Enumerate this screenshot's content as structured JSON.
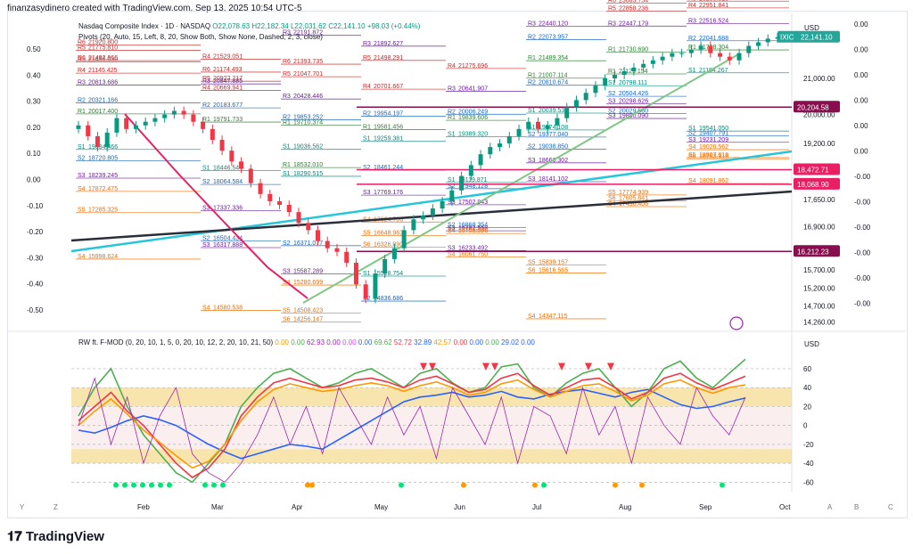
{
  "header": {
    "text": "finanzasydinero created with TradingView.com, Sep 13, 2025 10:54 UTC-5"
  },
  "legend": {
    "symbol": "Nasdaq Composite Index · 1D · NASDAQ",
    "o": "O22,078.63",
    "h": "H22,182.34",
    "l": "L22,031.62",
    "c": "C22,141.10",
    "chg": "+98.03 (+0.44%)",
    "pivots": "Pivots (20, Auto, 15, Left, 8, 20, Show Both, Show None, Dashed, 2, 3, close)"
  },
  "currency": "USD",
  "currency2": "USD",
  "ticker_tag": {
    "name": "IXIC",
    "price": "22,141.10",
    "color": "#26a69a"
  },
  "price_tags": [
    {
      "label": "20,204.58",
      "value": 20204.58,
      "color": "#880e4f"
    },
    {
      "label": "18,472.71",
      "value": 18472.71,
      "color": "#e91e63"
    },
    {
      "label": "18,068.90",
      "value": 18068.9,
      "color": "#e91e63"
    },
    {
      "label": "16,212.23",
      "value": 16212.23,
      "color": "#880e4f"
    }
  ],
  "osc_legend": {
    "name": "RW ft. F-MOD (0, 20, 10, 1, 5, 0, 20, 10, 12, 2, 20, 10, 21, 50)",
    "values": [
      {
        "v": "0.00",
        "c": "#ff9800"
      },
      {
        "v": "0.00",
        "c": "#4caf50"
      },
      {
        "v": "62.93",
        "c": "#9c27b0"
      },
      {
        "v": "0.00",
        "c": "#9c27b0"
      },
      {
        "v": "0.00",
        "c": "#e040fb"
      },
      {
        "v": "0.00",
        "c": "#2962ff"
      },
      {
        "v": "69.62",
        "c": "#4caf50"
      },
      {
        "v": "52.72",
        "c": "#f23645"
      },
      {
        "v": "32.89",
        "c": "#2962ff"
      },
      {
        "v": "42.57",
        "c": "#ff9800"
      },
      {
        "v": "0.00",
        "c": "#f23645"
      },
      {
        "v": "0.00",
        "c": "#2962ff"
      },
      {
        "v": "0.00",
        "c": "#4caf50"
      },
      {
        "v": "29.02",
        "c": "#2962ff"
      },
      {
        "v": "0.00",
        "c": "#2962ff"
      }
    ]
  },
  "left_scale": [
    "0.50",
    "0.40",
    "0.30",
    "0.20",
    "0.10",
    "0.00",
    "-0.10",
    "-0.20",
    "-0.30",
    "-0.40",
    "-0.50"
  ],
  "left_scale2": [
    "0.00",
    "0.00",
    "0.00",
    "0.00",
    "0.00",
    "-0.00",
    "-0.00",
    "-0.00"
  ],
  "right_scale2": [
    "0.00",
    "0.00",
    "0.00",
    "0.00",
    "0.00",
    "0.00",
    "-0.00",
    "-0.00",
    "-0.00",
    "-0.00",
    "-0.00",
    "-0.00"
  ],
  "chart_data": [
    {
      "type": "candlestick",
      "title": "Nasdaq Composite Index · 1D · NASDAQ",
      "x_ticks": [
        "Feb",
        "Mar",
        "Apr",
        "May",
        "Jun",
        "Jul",
        "Aug",
        "Sep",
        "Oct"
      ],
      "y_ticks": [
        21000,
        20000,
        19200,
        17650,
        16900,
        15700,
        15200,
        14700,
        14260
      ],
      "y_tick_labels": [
        "21,000.00",
        "20,000.00",
        "19,200.00",
        "17,650.00",
        "16,900.00",
        "15,700.00",
        "15,200.00",
        "14,700.00",
        "14,260.00"
      ],
      "ylim": [
        14000,
        22800
      ],
      "close": [
        19700,
        19400,
        19100,
        19500,
        19900,
        19600,
        19700,
        19800,
        19900,
        20000,
        20100,
        20000,
        19800,
        19600,
        19300,
        19000,
        18700,
        18500,
        18100,
        17800,
        17600,
        17500,
        17300,
        17000,
        16800,
        16500,
        16300,
        16200,
        15900,
        15300,
        14900,
        15600,
        16000,
        16300,
        16800,
        17100,
        17200,
        17400,
        17600,
        17900,
        18300,
        18600,
        18900,
        19100,
        19200,
        19400,
        19600,
        19800,
        19600,
        19700,
        19900,
        20200,
        20400,
        20600,
        20800,
        21000,
        21100,
        21200,
        21300,
        21400,
        21500,
        21600,
        21700,
        21700,
        21800,
        21900,
        21700,
        21600,
        21500,
        21700,
        21900,
        22000,
        22100,
        22141
      ],
      "pivot_levels": [
        {
          "label": "R6",
          "value": "21492.866"
        },
        {
          "label": "R5",
          "value": "21456.030"
        },
        {
          "label": "R4",
          "value": "21145.425"
        },
        {
          "label": "R3",
          "value": "20813.686"
        },
        {
          "label": "R2",
          "value": "20321.166"
        },
        {
          "label": "R1",
          "value": "20017.400"
        },
        {
          "label": "S1",
          "value": "19034.466"
        },
        {
          "label": "S2",
          "value": "18720.805"
        },
        {
          "label": "S3",
          "value": "18239.245"
        },
        {
          "label": "S4",
          "value": "17872.475"
        },
        {
          "label": "S5",
          "value": "17285.325"
        },
        {
          "label": "S4",
          "value": "15998.624"
        },
        {
          "label": "R6",
          "value": "21920.800"
        },
        {
          "label": "R5",
          "value": "21775.810"
        },
        {
          "label": "R4",
          "value": "21529.051"
        },
        {
          "label": "R3",
          "value": "20847.885"
        },
        {
          "label": "R2",
          "value": "20183.677"
        },
        {
          "label": "R1",
          "value": "19791.733"
        },
        {
          "label": "S1",
          "value": "18446.544"
        },
        {
          "label": "S2",
          "value": "18064.584"
        },
        {
          "label": "S3",
          "value": "17337.336"
        },
        {
          "label": "S2",
          "value": "16504.434"
        },
        {
          "label": "S3",
          "value": "16317.888"
        },
        {
          "label": "S4",
          "value": "14580.538"
        },
        {
          "label": "R6",
          "value": "21174.493"
        },
        {
          "label": "R5",
          "value": "20922.217"
        },
        {
          "label": "R4",
          "value": "20669.941"
        },
        {
          "label": "R3",
          "value": "20428.446"
        },
        {
          "label": "R2",
          "value": "19853.252"
        },
        {
          "label": "R1",
          "value": "19710.374"
        },
        {
          "label": "S1",
          "value": "19036.562"
        },
        {
          "label": "R1",
          "value": "18532.010"
        },
        {
          "label": "S1",
          "value": "18290.515"
        },
        {
          "label": "S2",
          "value": "16371.077"
        },
        {
          "label": "S3",
          "value": "15587.289"
        },
        {
          "label": "S4",
          "value": "15280.699"
        },
        {
          "label": "S5",
          "value": "14508.423"
        },
        {
          "label": "S6",
          "value": "14256.147"
        },
        {
          "label": "R3",
          "value": "22191.872"
        },
        {
          "label": "R6",
          "value": "21393.735"
        },
        {
          "label": "R5",
          "value": "21047.701"
        },
        {
          "label": "R4",
          "value": "20701.667"
        },
        {
          "label": "R2",
          "value": "19954.197"
        },
        {
          "label": "R1",
          "value": "19581.456"
        },
        {
          "label": "S1",
          "value": "19259.381"
        },
        {
          "label": "S2",
          "value": "18461.244"
        },
        {
          "label": "S3",
          "value": "17769.176"
        },
        {
          "label": "S4",
          "value": "17024.706"
        },
        {
          "label": "S5",
          "value": "16648.963"
        },
        {
          "label": "S6",
          "value": "16326.890"
        },
        {
          "label": "S1",
          "value": "15528.754"
        },
        {
          "label": "S2",
          "value": "14836.686"
        },
        {
          "label": "R3",
          "value": "21892.627"
        },
        {
          "label": "R5",
          "value": "21498.291"
        },
        {
          "label": "R4",
          "value": "21275.696"
        },
        {
          "label": "R3",
          "value": "20641.907"
        },
        {
          "label": "R2",
          "value": "20006.249"
        },
        {
          "label": "R1",
          "value": "19839.606"
        },
        {
          "label": "S1",
          "value": "19389.320"
        },
        {
          "label": "S1",
          "value": "18119.871"
        },
        {
          "label": "S2",
          "value": "17948.128"
        },
        {
          "label": "S3",
          "value": "17502.943"
        },
        {
          "label": "S2",
          "value": "16868.354"
        },
        {
          "label": "S3",
          "value": "16782.558"
        },
        {
          "label": "S4",
          "value": "16708.096"
        },
        {
          "label": "S3",
          "value": "16233.492"
        },
        {
          "label": "S4",
          "value": "16061.750"
        },
        {
          "label": "S5",
          "value": "15839.157"
        },
        {
          "label": "S6",
          "value": "15616.565"
        },
        {
          "label": "S4",
          "value": "14347.115"
        },
        {
          "label": "R3",
          "value": "22440.120"
        },
        {
          "label": "R2",
          "value": "22073.957"
        },
        {
          "label": "R1",
          "value": "21489.354"
        },
        {
          "label": "R1",
          "value": "21007.114"
        },
        {
          "label": "R2",
          "value": "20810.674"
        },
        {
          "label": "S1",
          "value": "20039.539"
        },
        {
          "label": "S1",
          "value": "19574.108"
        },
        {
          "label": "S2",
          "value": "19377.040"
        },
        {
          "label": "S2",
          "value": "19038.850"
        },
        {
          "label": "S3",
          "value": "18663.302"
        },
        {
          "label": "S3",
          "value": "18141.102"
        },
        {
          "label": "S5",
          "value": "17774.939"
        },
        {
          "label": "S6",
          "value": "17605.841"
        },
        {
          "label": "S4",
          "value": "17450.406"
        },
        {
          "label": "R6",
          "value": "23083.754"
        },
        {
          "label": "R5",
          "value": "22858.236"
        },
        {
          "label": "R3",
          "value": "22447.179"
        },
        {
          "label": "R1",
          "value": "21730.690"
        },
        {
          "label": "R1",
          "value": "21123.154"
        },
        {
          "label": "S1",
          "value": "20798.111"
        },
        {
          "label": "S2",
          "value": "20504.426"
        },
        {
          "label": "S3",
          "value": "20298.626"
        },
        {
          "label": "S2",
          "value": "20029.580"
        },
        {
          "label": "S3",
          "value": "19890.090"
        },
        {
          "label": "S1",
          "value": "19541.050"
        },
        {
          "label": "S4",
          "value": "19026.562"
        },
        {
          "label": "S5",
          "value": "18807.818"
        },
        {
          "label": "S6",
          "value": "18763.918"
        },
        {
          "label": "R5",
          "value": "23138.523"
        },
        {
          "label": "R4",
          "value": "22951.841"
        },
        {
          "label": "R3",
          "value": "22516.524"
        },
        {
          "label": "R2",
          "value": "22041.688"
        },
        {
          "label": "R1",
          "value": "21788.304"
        },
        {
          "label": "S1",
          "value": "21154.267"
        },
        {
          "label": "S2",
          "value": "19407.791"
        },
        {
          "label": "S3",
          "value": "19231.209"
        },
        {
          "label": "S4",
          "value": "18091.862"
        }
      ]
    },
    {
      "type": "line",
      "title": "RW ft. F-MOD",
      "ylim": [
        -70,
        75
      ],
      "y_ticks": [
        60,
        40,
        20,
        0,
        -20,
        -40,
        -60
      ],
      "bands": [
        {
          "from": 20,
          "to": 40,
          "color": "#f5d88a"
        },
        {
          "from": -40,
          "to": -25,
          "color": "#f5d88a"
        },
        {
          "from": -25,
          "to": 20,
          "color": "#f8e7e7"
        }
      ],
      "series": [
        {
          "color": "#2962ff",
          "values": [
            -5,
            -8,
            -2,
            5,
            10,
            6,
            0,
            -10,
            -20,
            -28,
            -35,
            -30,
            -25,
            -20,
            -22,
            -25,
            -15,
            -5,
            5,
            15,
            25,
            30,
            32,
            35,
            30,
            32,
            36,
            30,
            28,
            33,
            36,
            38,
            34,
            30,
            35,
            38,
            30,
            22,
            18,
            20,
            25,
            29
          ]
        },
        {
          "color": "#4caf50",
          "values": [
            10,
            40,
            60,
            20,
            -10,
            -30,
            -50,
            -60,
            -40,
            -20,
            20,
            40,
            55,
            60,
            50,
            40,
            45,
            55,
            60,
            50,
            40,
            55,
            60,
            45,
            35,
            40,
            62,
            65,
            40,
            30,
            45,
            55,
            60,
            40,
            20,
            35,
            60,
            68,
            50,
            40,
            55,
            70
          ]
        },
        {
          "color": "#f23645",
          "values": [
            5,
            20,
            35,
            15,
            0,
            -20,
            -40,
            -55,
            -45,
            -25,
            10,
            30,
            45,
            50,
            45,
            40,
            42,
            48,
            50,
            46,
            40,
            48,
            52,
            44,
            35,
            38,
            50,
            55,
            42,
            32,
            40,
            48,
            50,
            40,
            28,
            35,
            50,
            55,
            45,
            38,
            45,
            52
          ]
        },
        {
          "color": "#ff9800",
          "values": [
            0,
            15,
            28,
            12,
            -5,
            -18,
            -32,
            -45,
            -38,
            -20,
            5,
            25,
            38,
            44,
            40,
            36,
            38,
            42,
            45,
            42,
            36,
            42,
            46,
            40,
            32,
            35,
            44,
            48,
            38,
            30,
            36,
            42,
            44,
            36,
            26,
            32,
            44,
            48,
            40,
            34,
            40,
            43
          ]
        },
        {
          "color": "#9c27b0",
          "values": [
            0,
            50,
            -20,
            30,
            -40,
            10,
            40,
            -30,
            -50,
            -60,
            -40,
            -10,
            30,
            -20,
            20,
            -30,
            40,
            10,
            -20,
            30,
            -10,
            20,
            -35,
            40,
            10,
            -20,
            30,
            -40,
            20,
            10,
            -30,
            40,
            -10,
            20,
            -40,
            30,
            0,
            -20,
            40,
            10,
            -10,
            30
          ]
        }
      ],
      "marker_colors": [
        "#00e676",
        "#ff9800",
        "#f23645"
      ]
    }
  ]
}
